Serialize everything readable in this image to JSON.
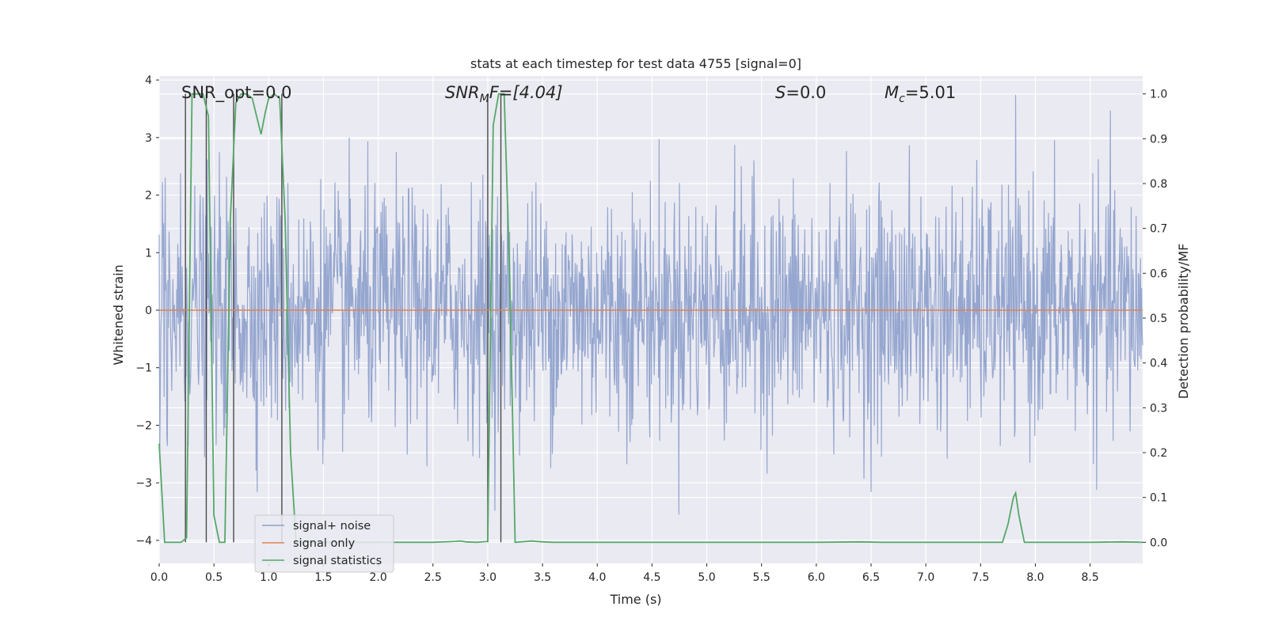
{
  "chart_data": {
    "type": "line",
    "title": "stats at each timestep for test data 4755 [signal=0]",
    "xlabel": "Time (s)",
    "ylabel_left": "Whitened strain",
    "ylabel_right": "Detection probability/MF",
    "xlim": [
      0.0,
      8.98
    ],
    "ylim_left": [
      -4.4,
      4.07
    ],
    "ylim_right": [
      -0.047,
      1.04
    ],
    "x_ticks": [
      "0.0",
      "0.5",
      "1.0",
      "1.5",
      "2.0",
      "2.5",
      "3.0",
      "3.5",
      "4.0",
      "4.5",
      "5.0",
      "5.5",
      "6.0",
      "6.5",
      "7.0",
      "7.5",
      "8.0",
      "8.5"
    ],
    "y_ticks_left": [
      "4",
      "3",
      "2",
      "1",
      "0",
      "−1",
      "−2",
      "−3",
      "−4"
    ],
    "y_ticks_right": [
      "1.0",
      "0.9",
      "0.8",
      "0.7",
      "0.6",
      "0.5",
      "0.4",
      "0.3",
      "0.2",
      "0.1",
      "0.0"
    ],
    "annotations": {
      "snr_opt": "SNR_opt=0.0",
      "snr_mf_base": "SNR",
      "snr_mf_sub": "M",
      "snr_mf_rest": "F=[4.04]",
      "s_sym": "S",
      "s_rest": "=0.0",
      "mc_sym": "M",
      "mc_sub": "c",
      "mc_rest": "=5.01"
    },
    "legend": {
      "location": "lower-left",
      "entries": [
        "signal+ noise",
        "signal only",
        "signal statistics"
      ]
    },
    "colors": {
      "noise": "#8c9fcb",
      "signal": "#dd8452",
      "stats": "#55a868",
      "vline": "#4a4a4a",
      "background": "#eaeaf2",
      "grid": "#ffffff"
    },
    "series": [
      {
        "name": "signal+ noise",
        "axis": "left",
        "note": "whitened strain noise, approx. Gaussian sigma 1, range -3.8 to 3.8",
        "sample_rate_display": 200,
        "noise_sigma": 1.0
      },
      {
        "name": "signal only",
        "axis": "left",
        "x": [
          0.0,
          8.98
        ],
        "y": [
          0.0,
          0.0
        ]
      },
      {
        "name": "signal statistics",
        "axis": "right",
        "x": [
          0.0,
          0.05,
          0.1,
          0.15,
          0.2,
          0.25,
          0.3,
          0.35,
          0.4,
          0.45,
          0.5,
          0.55,
          0.6,
          0.65,
          0.7,
          0.75,
          0.8,
          0.85,
          0.9,
          0.93,
          0.97,
          1.0,
          1.05,
          1.1,
          1.15,
          1.2,
          1.25,
          1.3,
          1.35,
          1.4,
          1.5,
          1.75,
          2.0,
          2.25,
          2.5,
          2.7,
          2.75,
          2.8,
          2.9,
          3.0,
          3.05,
          3.1,
          3.15,
          3.2,
          3.25,
          3.4,
          3.5,
          3.6,
          4.0,
          5.0,
          6.0,
          6.4,
          6.6,
          7.0,
          7.5,
          7.7,
          7.75,
          7.8,
          7.82,
          7.85,
          7.9,
          8.5,
          8.8,
          8.98
        ],
        "y": [
          0.22,
          0.0,
          0.0,
          0.0,
          0.0,
          0.01,
          1.0,
          1.0,
          1.0,
          0.95,
          0.06,
          0.0,
          0.0,
          0.72,
          0.98,
          1.0,
          1.0,
          0.99,
          0.94,
          0.91,
          0.96,
          0.99,
          1.0,
          0.99,
          0.72,
          0.2,
          0.0,
          0.0,
          0.0,
          0.0,
          0.0,
          0.0,
          0.0,
          0.0,
          0.0,
          0.002,
          0.003,
          0.001,
          0.0,
          0.002,
          0.93,
          1.0,
          1.0,
          0.6,
          0.0,
          0.003,
          0.001,
          0.0,
          0.0,
          0.0,
          0.0,
          0.001,
          0.0,
          0.0,
          0.0,
          0.0,
          0.04,
          0.1,
          0.11,
          0.06,
          0.0,
          0.0,
          0.001,
          0.0
        ]
      }
    ],
    "vertical_lines_x": [
      0.24,
      0.43,
      0.68,
      1.12,
      3.0,
      3.12
    ]
  }
}
